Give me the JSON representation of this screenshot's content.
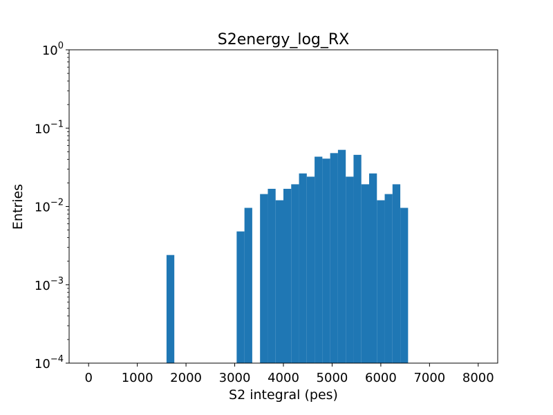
{
  "chart_data": {
    "type": "bar",
    "title": "S2energy_log_RX",
    "xlabel": "S2 integral (pes)",
    "ylabel": "Entries",
    "yscale": "log",
    "xlim": [
      -400,
      8400
    ],
    "ylim": [
      0.0001,
      1
    ],
    "x_ticks": [
      0,
      1000,
      2000,
      3000,
      4000,
      5000,
      6000,
      7000,
      8000
    ],
    "y_ticks": [
      {
        "value": 0.0001,
        "base": "10",
        "exponent": "−4"
      },
      {
        "value": 0.001,
        "base": "10",
        "exponent": "−3"
      },
      {
        "value": 0.01,
        "base": "10",
        "exponent": "−2"
      },
      {
        "value": 0.1,
        "base": "10",
        "exponent": "−1"
      },
      {
        "value": 1,
        "base": "10",
        "exponent": "0"
      }
    ],
    "bar_color": "#1f77b4",
    "grid": false,
    "legend": "none",
    "bin_width": 160,
    "bins": [
      {
        "x0": 1600,
        "x1": 1760,
        "value": 0.0024
      },
      {
        "x0": 3040,
        "x1": 3200,
        "value": 0.0048
      },
      {
        "x0": 3200,
        "x1": 3360,
        "value": 0.0096
      },
      {
        "x0": 3520,
        "x1": 3680,
        "value": 0.0144
      },
      {
        "x0": 3680,
        "x1": 3840,
        "value": 0.0168
      },
      {
        "x0": 3840,
        "x1": 4000,
        "value": 0.012
      },
      {
        "x0": 4000,
        "x1": 4160,
        "value": 0.0168
      },
      {
        "x0": 4160,
        "x1": 4320,
        "value": 0.0192
      },
      {
        "x0": 4320,
        "x1": 4480,
        "value": 0.0264
      },
      {
        "x0": 4480,
        "x1": 4640,
        "value": 0.024
      },
      {
        "x0": 4640,
        "x1": 4800,
        "value": 0.0432
      },
      {
        "x0": 4800,
        "x1": 4960,
        "value": 0.0408
      },
      {
        "x0": 4960,
        "x1": 5120,
        "value": 0.048
      },
      {
        "x0": 5120,
        "x1": 5280,
        "value": 0.0528
      },
      {
        "x0": 5280,
        "x1": 5440,
        "value": 0.024
      },
      {
        "x0": 5440,
        "x1": 5600,
        "value": 0.0456
      },
      {
        "x0": 5600,
        "x1": 5760,
        "value": 0.0192
      },
      {
        "x0": 5760,
        "x1": 5920,
        "value": 0.0264
      },
      {
        "x0": 5920,
        "x1": 6080,
        "value": 0.012
      },
      {
        "x0": 6080,
        "x1": 6240,
        "value": 0.0144
      },
      {
        "x0": 6240,
        "x1": 6400,
        "value": 0.0192
      },
      {
        "x0": 6400,
        "x1": 6560,
        "value": 0.0096
      }
    ]
  }
}
